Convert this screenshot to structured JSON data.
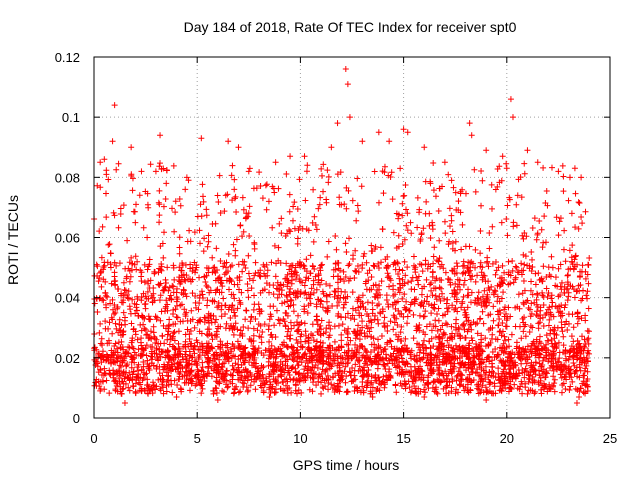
{
  "chart_data": {
    "type": "scatter",
    "title": "Day 184 of 2018, Rate Of TEC Index for receiver spt0",
    "xlabel": "GPS time / hours",
    "ylabel": "ROTI / TECUs",
    "xlim": [
      0,
      25
    ],
    "ylim": [
      0,
      0.12
    ],
    "xticks": [
      "0",
      "5",
      "10",
      "15",
      "20",
      "25"
    ],
    "yticks": [
      "0",
      "0.02",
      "0.04",
      "0.06",
      "0.08",
      "0.1",
      "0.12"
    ],
    "grid": true,
    "marker": "plus",
    "color": "#ff0000",
    "series": [
      {
        "time_coverage_hours": [
          0,
          24
        ],
        "typical_range": [
          0.005,
          0.085
        ],
        "points": [
          [
            0.1,
            0.02
          ],
          [
            0.3,
            0.085
          ],
          [
            0.5,
            0.086
          ],
          [
            0.6,
            0.081
          ],
          [
            0.9,
            0.092
          ],
          [
            1.0,
            0.104
          ],
          [
            1.8,
            0.09
          ],
          [
            2.3,
            0.082
          ],
          [
            3.0,
            0.082
          ],
          [
            3.2,
            0.094
          ],
          [
            3.5,
            0.078
          ],
          [
            4.5,
            0.08
          ],
          [
            5.2,
            0.093
          ],
          [
            6.5,
            0.092
          ],
          [
            7.0,
            0.09
          ],
          [
            7.5,
            0.082
          ],
          [
            8.8,
            0.085
          ],
          [
            9.5,
            0.087
          ],
          [
            10.2,
            0.087
          ],
          [
            11.5,
            0.09
          ],
          [
            11.8,
            0.098
          ],
          [
            12.2,
            0.116
          ],
          [
            12.3,
            0.111
          ],
          [
            12.4,
            0.1
          ],
          [
            13.0,
            0.092
          ],
          [
            13.8,
            0.095
          ],
          [
            14.3,
            0.092
          ],
          [
            15.0,
            0.096
          ],
          [
            15.2,
            0.095
          ],
          [
            16.0,
            0.09
          ],
          [
            17.0,
            0.085
          ],
          [
            18.2,
            0.098
          ],
          [
            18.3,
            0.094
          ],
          [
            19.0,
            0.089
          ],
          [
            19.8,
            0.087
          ],
          [
            20.2,
            0.106
          ],
          [
            20.3,
            0.1
          ],
          [
            21.0,
            0.089
          ],
          [
            21.5,
            0.085
          ],
          [
            22.5,
            0.082
          ],
          [
            23.3,
            0.083
          ],
          [
            23.6,
            0.08
          ],
          [
            0.3,
            0.009
          ],
          [
            1.5,
            0.005
          ],
          [
            4.0,
            0.007
          ],
          [
            6.0,
            0.006
          ],
          [
            8.5,
            0.007
          ],
          [
            11.0,
            0.008
          ],
          [
            13.5,
            0.007
          ],
          [
            16.0,
            0.007
          ],
          [
            19.0,
            0.006
          ],
          [
            21.0,
            0.008
          ],
          [
            23.4,
            0.005
          ],
          [
            23.5,
            0.007
          ]
        ]
      }
    ]
  }
}
